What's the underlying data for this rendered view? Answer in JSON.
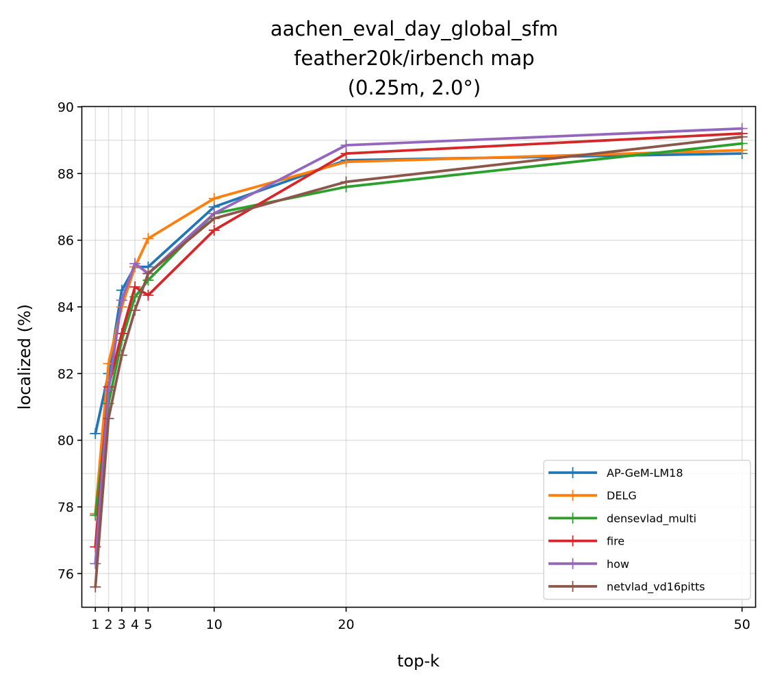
{
  "chart_data": {
    "type": "line",
    "title": [
      "aachen_eval_day_global_sfm",
      "feather20k/irbench map",
      "(0.25m, 2.0°)"
    ],
    "xlabel": "top-k",
    "ylabel": "localized (%)",
    "xlim": [
      0,
      51
    ],
    "ylim": [
      75,
      90
    ],
    "x": [
      1,
      2,
      3,
      4,
      5,
      10,
      20,
      50
    ],
    "x_tick_labels": [
      "1",
      "2",
      "3",
      "4",
      "5",
      "10",
      "20",
      "50"
    ],
    "y_ticks": [
      76,
      78,
      80,
      82,
      84,
      86,
      88,
      90
    ],
    "y_tick_labels": [
      "76",
      "78",
      "80",
      "82",
      "84",
      "86",
      "88",
      "90"
    ],
    "grid": true,
    "legend_position": "lower-right",
    "series": [
      {
        "name": "AP-GeM-LM18",
        "color": "#1f77b4",
        "values": [
          80.2,
          82.0,
          84.5,
          85.2,
          85.2,
          87.0,
          88.4,
          88.6
        ]
      },
      {
        "name": "DELG",
        "color": "#ff7f0e",
        "values": [
          77.8,
          82.3,
          84.0,
          85.2,
          86.05,
          87.25,
          88.35,
          88.7
        ]
      },
      {
        "name": "densevlad_multi",
        "color": "#2ca02c",
        "values": [
          77.75,
          81.1,
          83.0,
          84.3,
          84.8,
          86.8,
          87.6,
          88.9
        ]
      },
      {
        "name": "fire",
        "color": "#d62728",
        "values": [
          76.8,
          81.6,
          83.2,
          84.6,
          84.35,
          86.3,
          88.6,
          89.2
        ]
      },
      {
        "name": "how",
        "color": "#9467bd",
        "values": [
          76.3,
          81.5,
          84.2,
          85.3,
          85.0,
          86.8,
          88.85,
          89.35
        ]
      },
      {
        "name": "netvlad_vd16pitts",
        "color": "#8c564b",
        "values": [
          75.6,
          80.65,
          82.55,
          83.9,
          85.0,
          86.65,
          87.75,
          89.1
        ]
      }
    ]
  }
}
